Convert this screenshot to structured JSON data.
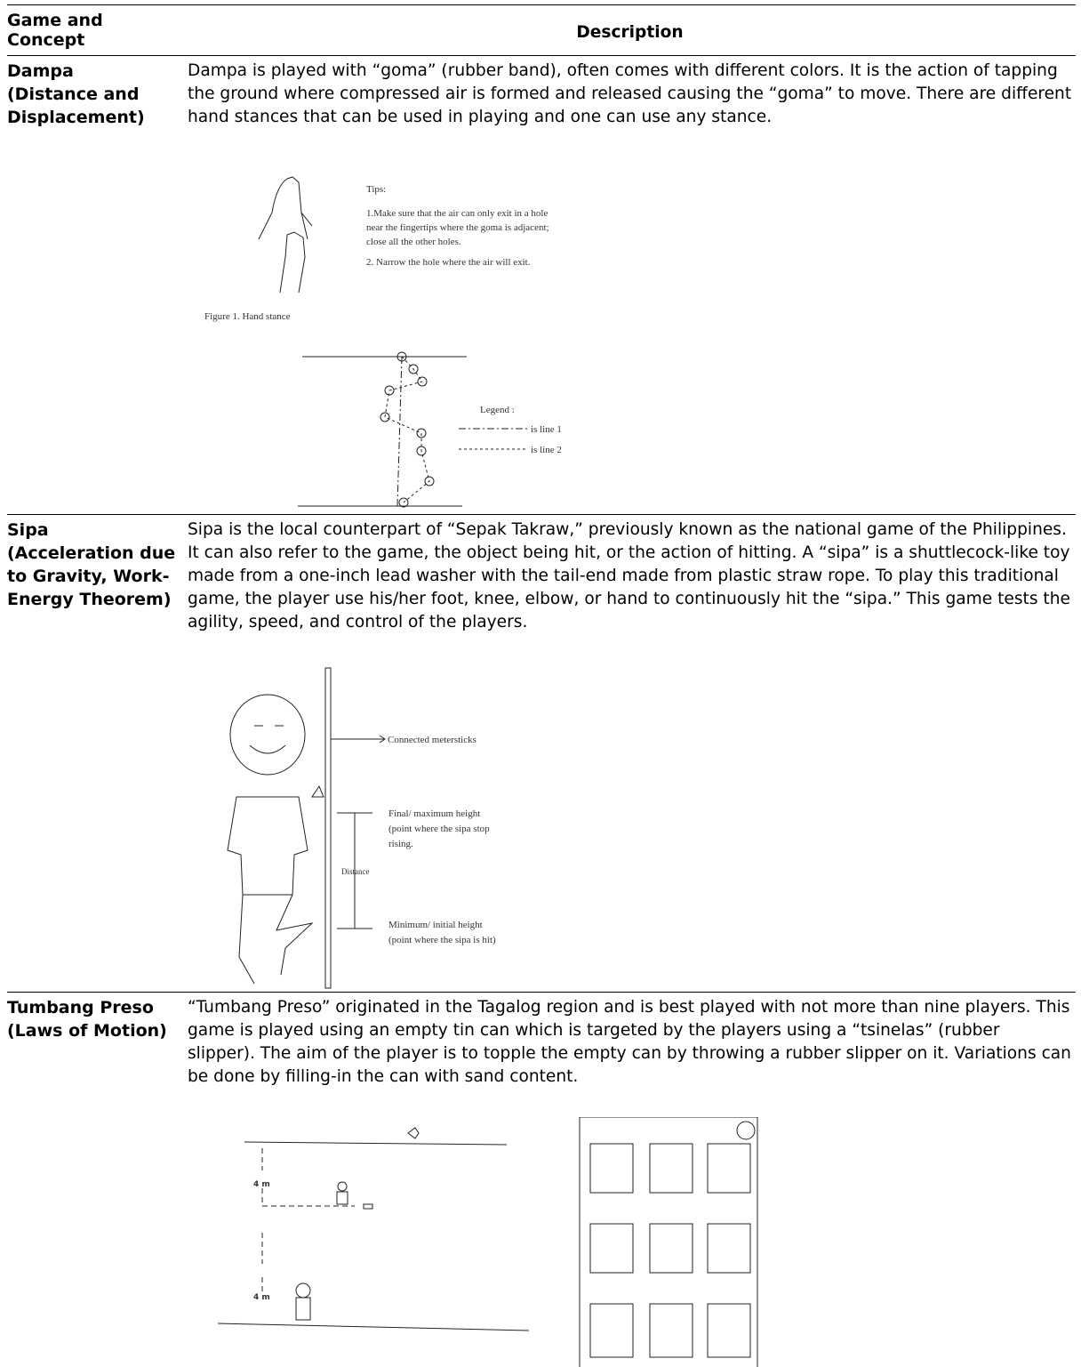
{
  "table": {
    "header": [
      "Game and Concept",
      "Description"
    ],
    "rows": [
      {
        "game": "Dampa",
        "concept": "(Distance and Displacement)",
        "description": "Dampa is played with “goma” (rubber band), often comes with different colors. It is the action of tapping the ground where compressed air is formed and released causing the “goma” to move. There are different hand stances that can be used in playing and one can use any stance.",
        "figure": {
          "tips_title": "Tips:",
          "tips": [
            "1.Make sure that the air can only exit in a hole",
            "near the fingertips where the goma is adjacent;",
            "close all the other holes.",
            "2. Narrow the hole where the air will exit."
          ],
          "caption": "Figure 1. Hand stance",
          "legend_title": "Legend :",
          "legend": [
            "is line 1",
            "is line 2"
          ]
        }
      },
      {
        "game": "Sipa",
        "concept": "(Acceleration due to Gravity, Work-Energy Theorem)",
        "description": "Sipa is the local counterpart of “Sepak Takraw,” previously known as the national game of the Philippines. It can also refer to the game, the object being hit, or the action of hitting. A “sipa” is a shuttlecock-like toy made from a one-inch lead washer with the tail-end made from plastic straw rope. To play this traditional game, the player use his/her foot, knee, elbow, or hand to continuously hit the “sipa.” This game tests the agility, speed, and control of the players.",
        "figure": {
          "pole": "Connected metersticks",
          "top": [
            "Final/ maximum height",
            "(point where the sipa stop",
            "rising."
          ],
          "distance": "Distance",
          "bottom": [
            "Minimum/ initial height",
            "(point where the sipa is hit)"
          ]
        }
      },
      {
        "game": "Tumbang Preso",
        "concept": "(Laws of Motion)",
        "description": "“Tumbang Preso” originated in the Tagalog region and is best played with not more than nine players. This game is played using an empty tin can which is targeted by the players using a “tsinelas” (rubber slipper). The aim of the player is to topple the empty can by throwing a rubber slipper on it. Variations can be done by filling-in the can with sand content.",
        "figure": {
          "distances": [
            "4 m",
            "4 m"
          ]
        }
      }
    ]
  }
}
